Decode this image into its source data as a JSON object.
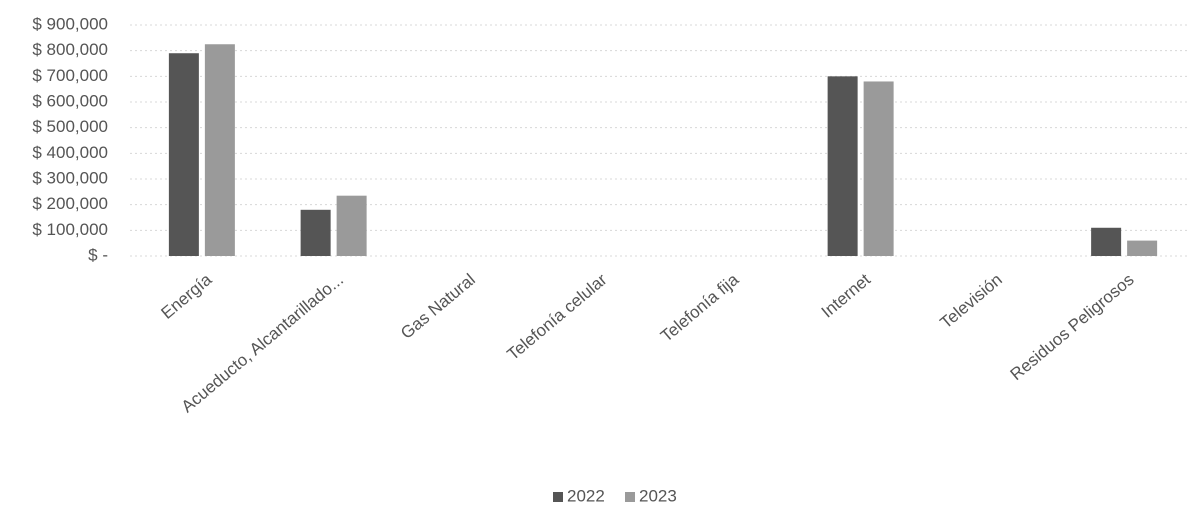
{
  "chart_data": {
    "type": "bar",
    "categories": [
      "Energía",
      "Acueducto, Alcantarillado...",
      "Gas Natural",
      "Telefonía celular",
      "Telefonía fija",
      "Internet",
      "Televisión",
      "Residuos Peligrosos"
    ],
    "series": [
      {
        "name": "2022",
        "color": "#555555",
        "values": [
          790000,
          180000,
          0,
          0,
          0,
          700000,
          0,
          110000
        ]
      },
      {
        "name": "2023",
        "color": "#9a9a9a",
        "values": [
          825000,
          235000,
          0,
          0,
          0,
          680000,
          0,
          60000
        ]
      }
    ],
    "ylim": [
      0,
      900000
    ],
    "yticks": [
      {
        "value": 0,
        "label": "$ -"
      },
      {
        "value": 100000,
        "label": "$ 100,000"
      },
      {
        "value": 200000,
        "label": "$ 200,000"
      },
      {
        "value": 300000,
        "label": "$ 300,000"
      },
      {
        "value": 400000,
        "label": "$ 400,000"
      },
      {
        "value": 500000,
        "label": "$ 500,000"
      },
      {
        "value": 600000,
        "label": "$ 600,000"
      },
      {
        "value": 700000,
        "label": "$ 700,000"
      },
      {
        "value": 800000,
        "label": "$ 800,000"
      },
      {
        "value": 900000,
        "label": "$ 900,000"
      }
    ],
    "grid": true,
    "legend": "bottom"
  }
}
